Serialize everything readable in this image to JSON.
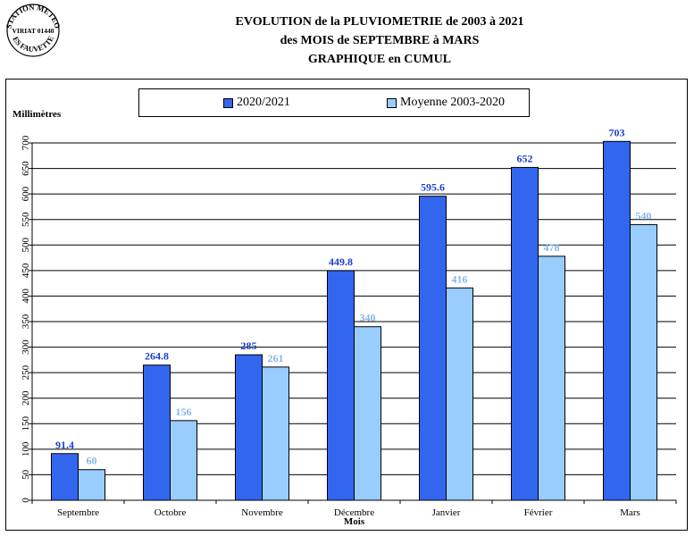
{
  "stamp": {
    "arc_top": "STATION METEO",
    "middle": "VIRIAT 01440",
    "arc_bottom": "LES FAUVETTES"
  },
  "title": {
    "line1": "EVOLUTION de la PLUVIOMETRIE de 2003 à 2021",
    "line2": "des MOIS de SEPTEMBRE à MARS",
    "line3": "GRAPHIQUE en CUMUL"
  },
  "chart_data": {
    "type": "bar",
    "categories": [
      "Septembre",
      "Octobre",
      "Novembre",
      "Décembre",
      "Janvier",
      "Février",
      "Mars"
    ],
    "series": [
      {
        "name": "2020/2021",
        "values": [
          91.4,
          264.8,
          285,
          449.8,
          595.6,
          652,
          703
        ],
        "color": "#3366ee",
        "label_color": "#1a3fcf"
      },
      {
        "name": "Moyenne 2003-2020",
        "values": [
          60,
          156,
          261,
          340,
          416,
          478,
          540
        ],
        "color": "#99ccff",
        "label_color": "#8ab4e8"
      }
    ],
    "ylabel": "Millimètres",
    "xlabel": "Mois",
    "ylim": [
      0,
      700
    ],
    "yticks": [
      0,
      50,
      100,
      150,
      200,
      250,
      300,
      350,
      400,
      450,
      500,
      550,
      600,
      650,
      700
    ],
    "grid": true,
    "legend_position": "top"
  }
}
